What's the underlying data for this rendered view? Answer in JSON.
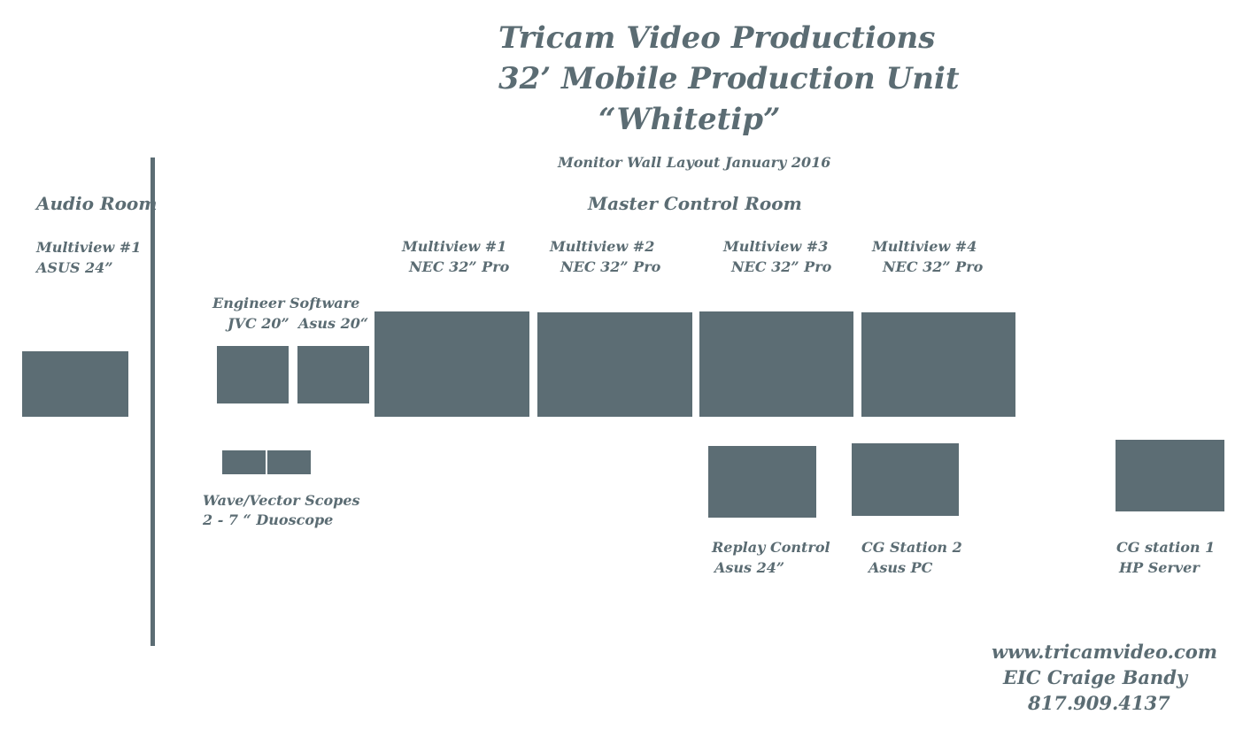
{
  "header": {
    "title_line1": "Tricam Video Productions",
    "title_line2": "32’ Mobile Production Unit",
    "title_line3": "“Whitetip”",
    "subtitle": "Monitor Wall Layout January 2016"
  },
  "rooms": {
    "audio": "Audio Room",
    "master": "Master Control Room"
  },
  "labels": {
    "audio_mv1_a": "Multiview #1",
    "audio_mv1_b": "ASUS 24”",
    "engineer_a": "Engineer",
    "engineer_b": "JVC 20”",
    "software_a": "Software",
    "software_b": "Asus 20“",
    "mv1_a": "Multiview #1",
    "mv1_b": "NEC 32” Pro",
    "mv2_a": "Multiview #2",
    "mv2_b": "NEC 32” Pro",
    "mv3_a": "Multiview #3",
    "mv3_b": "NEC 32” Pro",
    "mv4_a": "Multiview #4",
    "mv4_b": "NEC 32” Pro",
    "scopes_a": "Wave/Vector Scopes",
    "scopes_b": "2 - 7 “ Duoscope",
    "replay_a": "Replay Control",
    "replay_b": "Asus 24”",
    "cg2_a": "CG Station 2",
    "cg2_b": "Asus PC",
    "cg1_a": "CG station 1",
    "cg1_b": "HP Server"
  },
  "footer": {
    "website": "www.tricamvideo.com",
    "eic": "EIC Craige Bandy",
    "phone": "817.909.4137"
  }
}
